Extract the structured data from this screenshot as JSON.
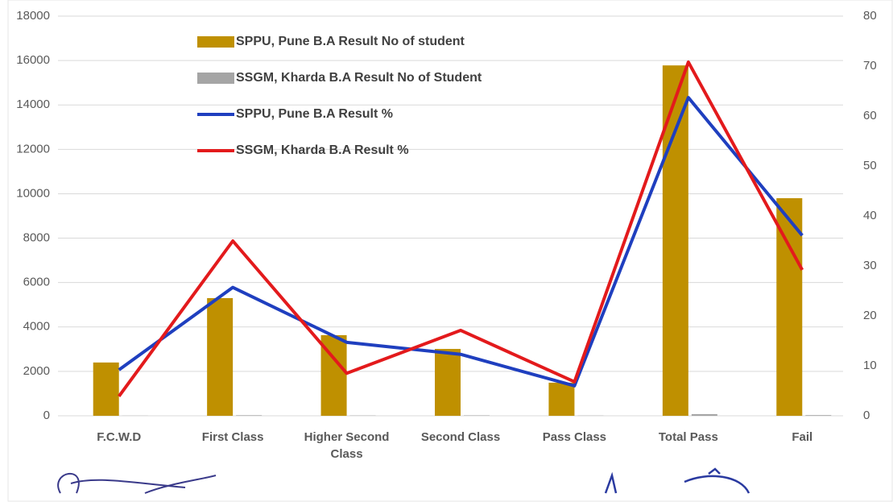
{
  "chart_data": {
    "type": "bar_line",
    "categories": [
      "F.C.W.D",
      "First Class",
      "Higher Second Class",
      "Second Class",
      "Pass Class",
      "Total Pass",
      "Fail"
    ],
    "series": [
      {
        "name": "SPPU, Pune B.A Result No of student",
        "type": "bar",
        "color": "#bf9000",
        "values": [
          2400,
          5300,
          3630,
          3010,
          1490,
          15780,
          9800
        ]
      },
      {
        "name": "SSGM, Kharda B.A Result No of Student",
        "type": "bar",
        "color": "#a5a5a5",
        "values": [
          5,
          25,
          12,
          20,
          10,
          75,
          30
        ]
      },
      {
        "name": "SPPU, Pune B.A Result %",
        "type": "line",
        "axis": "y2",
        "color": "#1f3fbf",
        "values": [
          9.2,
          25.7,
          14.7,
          12.3,
          6.0,
          63.7,
          36.1
        ]
      },
      {
        "name": "SSGM, Kharda B.A Result %",
        "type": "line",
        "axis": "y2",
        "color": "#e31a1c",
        "values": [
          3.9,
          35.0,
          8.5,
          17.1,
          6.8,
          70.8,
          29.2
        ]
      }
    ],
    "ylim": [
      0,
      18000
    ],
    "yticks": [
      0,
      2000,
      4000,
      6000,
      8000,
      10000,
      12000,
      14000,
      16000,
      18000
    ],
    "y2lim": [
      0,
      80
    ],
    "y2ticks": [
      0,
      10,
      20,
      30,
      40,
      50,
      60,
      70,
      80
    ],
    "grid": true,
    "legend": "top-left"
  }
}
